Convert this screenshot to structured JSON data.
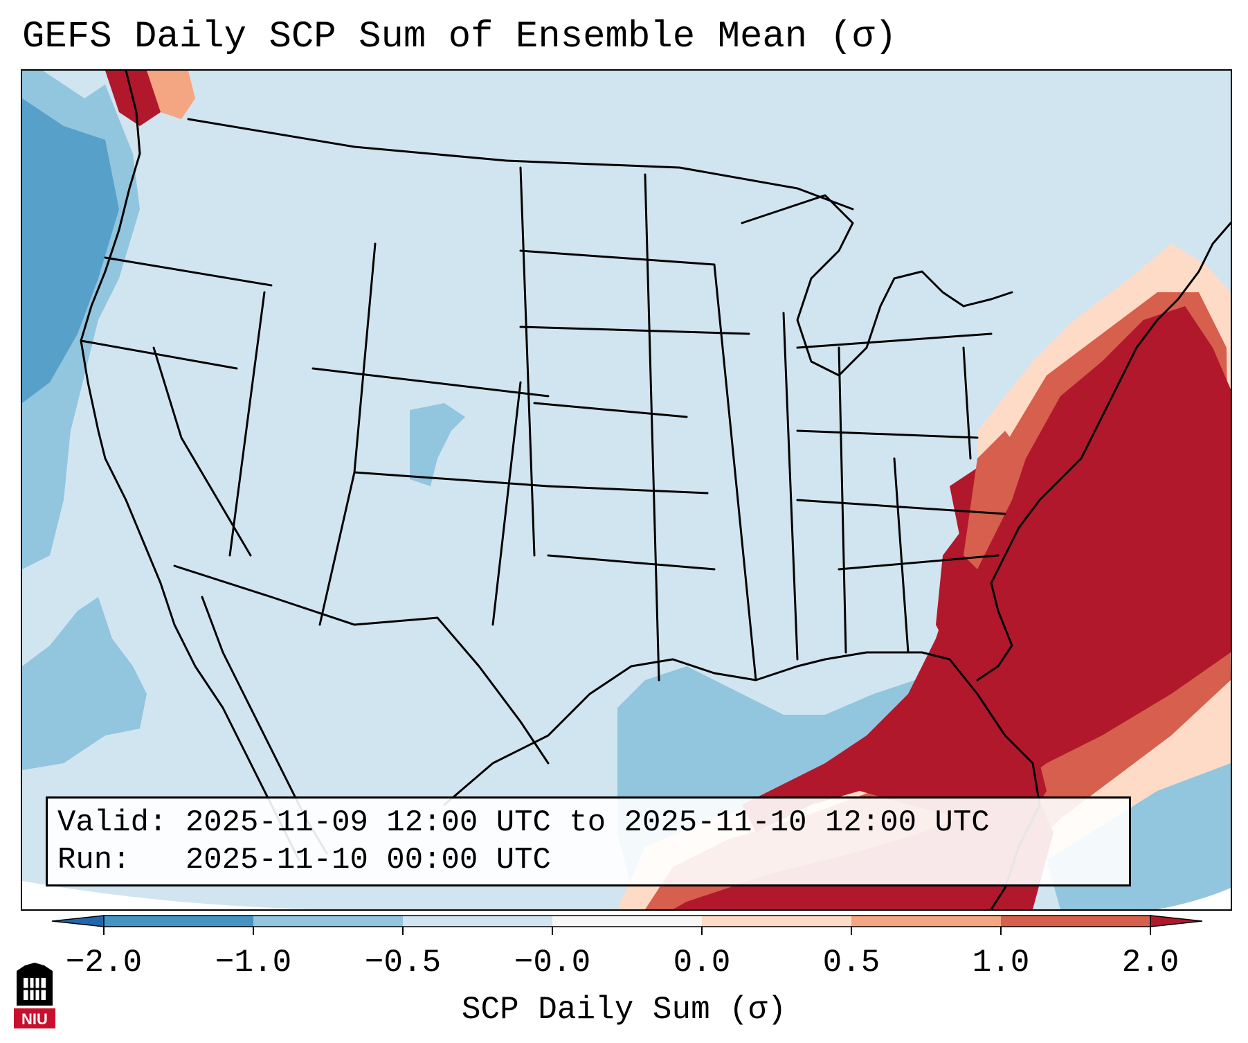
{
  "title": "GEFS Daily SCP Sum of Ensemble Mean (σ)",
  "info": {
    "valid_label": "Valid:",
    "valid_value": "2025-11-09 12:00 UTC to 2025-11-10 12:00 UTC",
    "run_label": "Run:",
    "run_value": "2025-11-10 00:00 UTC"
  },
  "colorbar": {
    "label": "SCP Daily Sum (σ)",
    "ticks": [
      "−2.0",
      "−1.0",
      "−0.5",
      "−0.0",
      "0.0",
      "0.5",
      "1.0",
      "2.0"
    ],
    "bin_colors": [
      "#4393c3",
      "#92c5de",
      "#d1e5f0",
      "#f7f7f7",
      "#fddbc7",
      "#f4a582",
      "#d6604d"
    ],
    "under_color": "#2166ac",
    "over_color": "#b2182b"
  },
  "map": {
    "projection": "lambert-conformal",
    "region": "CONUS",
    "field": "SCP daily sum standardized anomaly",
    "high_anomaly_region": "eastern US and western Atlantic",
    "land_fill": "#d1e5f0"
  },
  "logo": {
    "text": "NIU",
    "color": "#c8102e"
  }
}
